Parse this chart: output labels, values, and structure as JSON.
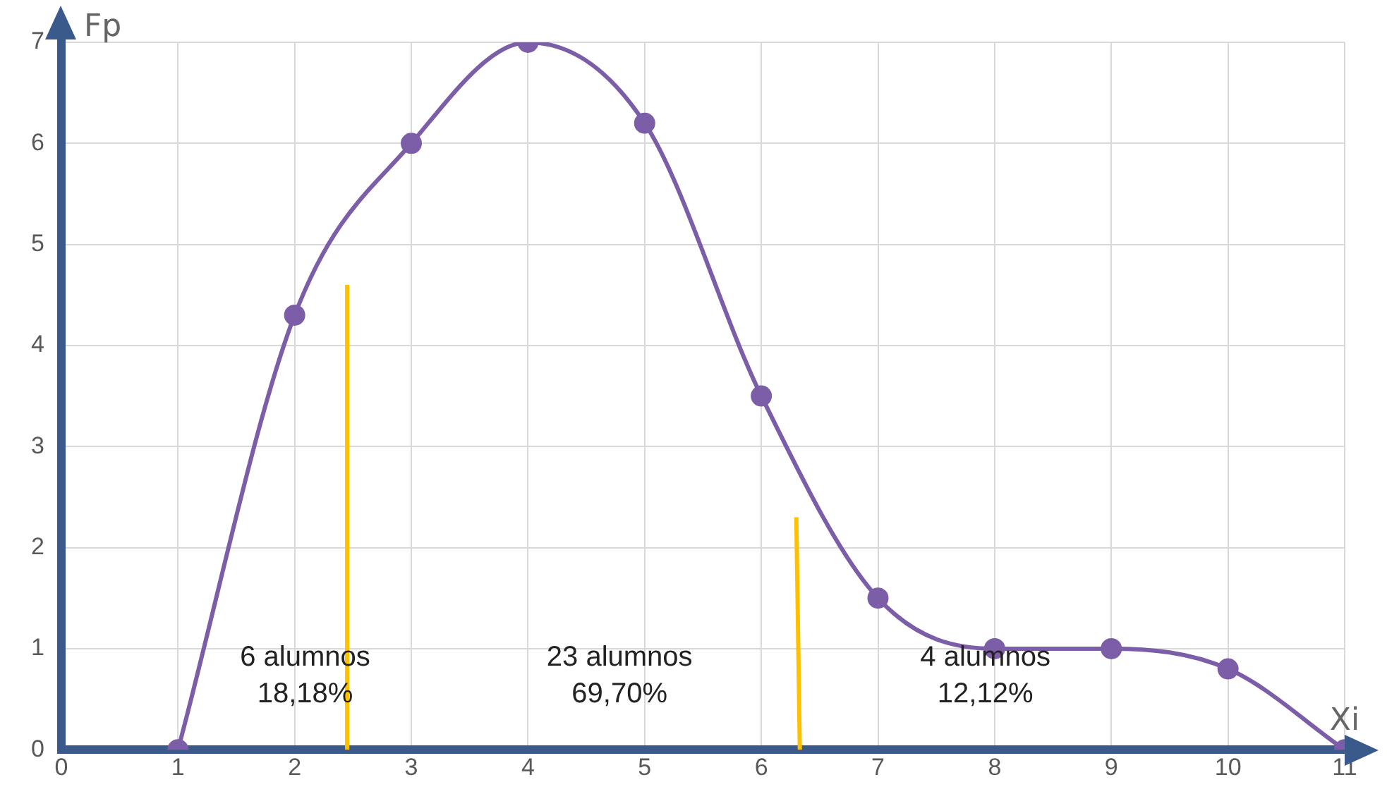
{
  "chart_data": {
    "type": "line",
    "xlabel": "Xi",
    "ylabel": "Fp",
    "x": [
      1,
      2,
      3,
      4,
      5,
      6,
      7,
      8,
      9,
      10,
      11
    ],
    "series": [
      {
        "color": "#7b5ea7",
        "values": [
          0,
          4.3,
          6,
          7,
          6.2,
          3.5,
          1.5,
          1,
          1,
          0.8,
          0
        ]
      },
      {
        "type": "line",
        "color": "#ffc000",
        "x": [
          2.45,
          2.45
        ],
        "values": [
          0,
          4.6
        ],
        "marker": "none"
      },
      {
        "type": "line",
        "color": "#ffc000",
        "x": [
          6.33,
          6.3
        ],
        "values": [
          0,
          2.3
        ],
        "marker": "none"
      }
    ],
    "xlim": [
      0,
      11
    ],
    "xticks": [
      0,
      1,
      2,
      3,
      4,
      5,
      6,
      7,
      8,
      9,
      10,
      11
    ],
    "ylim": [
      0,
      7
    ],
    "yticks": [
      0,
      1,
      2,
      3,
      4,
      5,
      6,
      7
    ],
    "grid": true,
    "legend": false,
    "marker": "circle",
    "line_style": "solid",
    "annotations": [
      "6 alumnos\n18,18%",
      "23 alumnos\n69,70%",
      "4 alumnos\n12,12%"
    ]
  }
}
